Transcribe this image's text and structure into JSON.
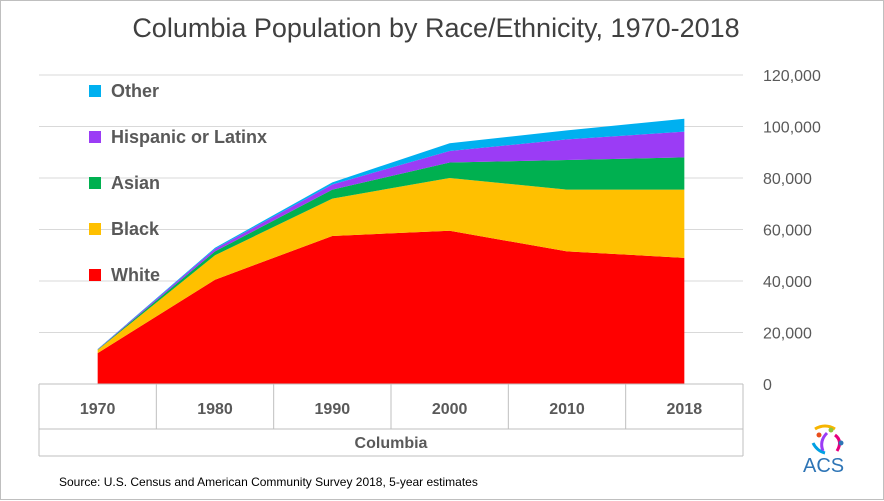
{
  "chart_data": {
    "type": "area",
    "title": "Columbia Population by Race/Ethnicity, 1970-2018",
    "x": [
      "1970",
      "1980",
      "1990",
      "2000",
      "2010",
      "2018"
    ],
    "xlabel": "Columbia",
    "ylabel": "",
    "ylim": [
      0,
      120000
    ],
    "yticks": [
      "0",
      "20,000",
      "40,000",
      "60,000",
      "80,000",
      "100,000",
      "120,000"
    ],
    "stacked": true,
    "grid": true,
    "legend_position": "top-left inside",
    "y_axis_side": "right",
    "series": [
      {
        "name": "White",
        "color": "#ff0000",
        "values": [
          12000,
          40500,
          57500,
          59500,
          51500,
          49000
        ]
      },
      {
        "name": "Black",
        "color": "#ffc000",
        "values": [
          1200,
          9500,
          14500,
          20500,
          24000,
          26500
        ]
      },
      {
        "name": "Asian",
        "color": "#00b050",
        "values": [
          150,
          1500,
          3500,
          6000,
          11500,
          12500
        ]
      },
      {
        "name": "Hispanic or Latinx",
        "color": "#9b3cf5",
        "values": [
          150,
          1000,
          2000,
          4500,
          8000,
          10000
        ]
      },
      {
        "name": "Other",
        "color": "#00b0f0",
        "values": [
          100,
          400,
          800,
          3000,
          3500,
          5000
        ]
      }
    ]
  },
  "source": "Source: U.S. Census and American Community Survey 2018, 5-year estimates",
  "logo": {
    "text": "ACS"
  }
}
